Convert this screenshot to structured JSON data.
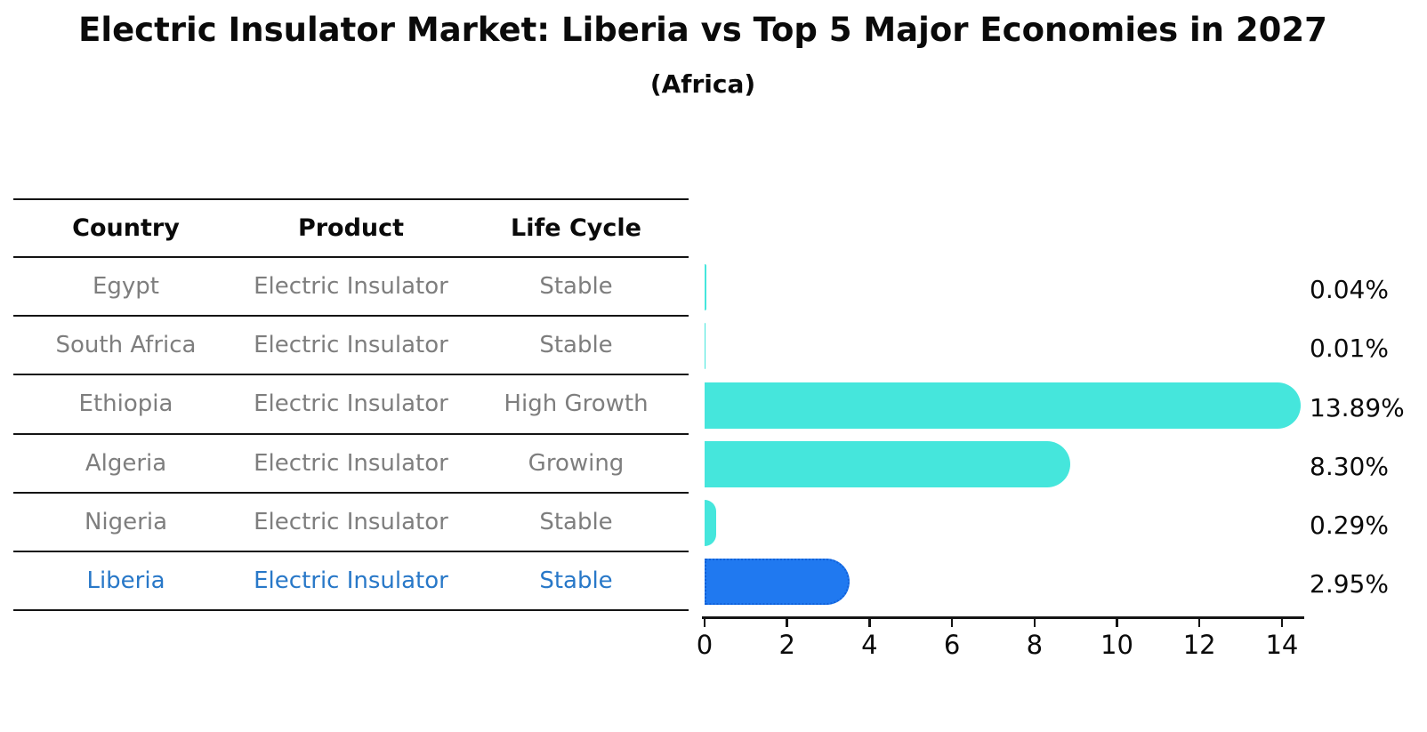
{
  "title": "Electric Insulator Market: Liberia vs Top 5 Major Economies in 2027",
  "subtitle": "(Africa)",
  "table": {
    "headers": [
      "Country",
      "Product",
      "Life Cycle"
    ],
    "rows": [
      {
        "country": "Egypt",
        "product": "Electric Insulator",
        "life_cycle": "Stable",
        "highlight": false
      },
      {
        "country": "South Africa",
        "product": "Electric Insulator",
        "life_cycle": "Stable",
        "highlight": false
      },
      {
        "country": "Ethiopia",
        "product": "Electric Insulator",
        "life_cycle": "High Growth",
        "highlight": false
      },
      {
        "country": "Algeria",
        "product": "Electric Insulator",
        "life_cycle": "Growing",
        "highlight": false
      },
      {
        "country": "Nigeria",
        "product": "Electric Insulator",
        "life_cycle": "Stable",
        "highlight": false
      },
      {
        "country": "Liberia",
        "product": "Electric Insulator",
        "life_cycle": "Stable",
        "highlight": true
      }
    ]
  },
  "chart_data": {
    "type": "bar",
    "orientation": "horizontal",
    "title": "Electric Insulator Market: Liberia vs Top 5 Major Economies in 2027",
    "subtitle": "(Africa)",
    "categories": [
      "Egypt",
      "South Africa",
      "Ethiopia",
      "Algeria",
      "Nigeria",
      "Liberia"
    ],
    "values": [
      0.04,
      0.01,
      13.89,
      8.3,
      0.29,
      2.95
    ],
    "value_labels": [
      "0.04%",
      "0.01%",
      "13.89%",
      "8.30%",
      "0.29%",
      "2.95%"
    ],
    "xticks": [
      0,
      2,
      4,
      6,
      8,
      10,
      12,
      14
    ],
    "xlim": [
      0,
      14.5
    ],
    "grid": false,
    "legend": "none",
    "highlight_index": 5,
    "bar_color": "#45E6DC",
    "highlight_bar_color": "#2079F0"
  },
  "colors": {
    "bar": "#45E6DC",
    "highlight_bar": "#2079F0",
    "highlight_bar_border": "#1161D9",
    "row_text": "#7E7E7E",
    "highlight_text": "#2878C8",
    "heading_text": "#0A0A0A",
    "line": "#141414",
    "background": "#FFFFFF"
  }
}
